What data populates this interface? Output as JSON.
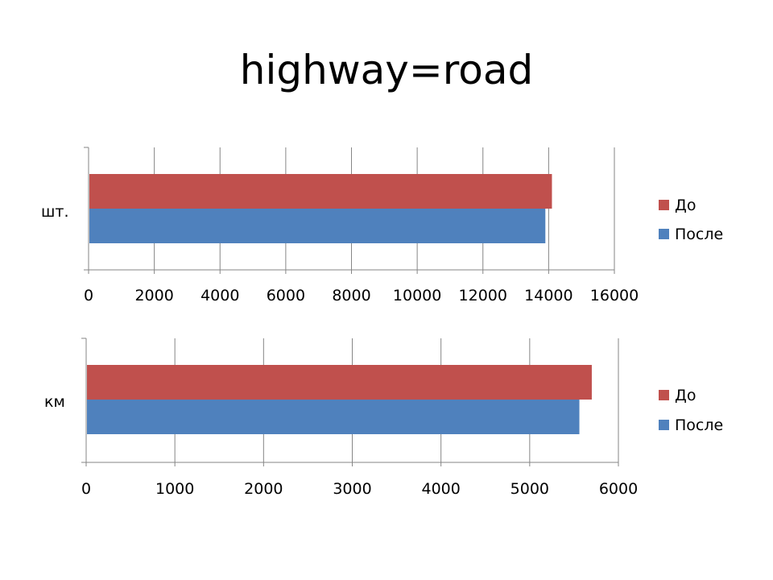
{
  "slide": {
    "title": "highway=road"
  },
  "chart_data": [
    {
      "type": "bar",
      "orientation": "horizontal",
      "categories": [
        "шт."
      ],
      "series": [
        {
          "name": "До",
          "values": [
            14100
          ],
          "color": "#c0504d"
        },
        {
          "name": "После",
          "values": [
            13900
          ],
          "color": "#4f81bd"
        }
      ],
      "xlim": [
        0,
        16000
      ],
      "xticks": [
        0,
        2000,
        4000,
        6000,
        8000,
        10000,
        12000,
        14000,
        16000
      ],
      "grid": "vertical",
      "legend": "right"
    },
    {
      "type": "bar",
      "orientation": "horizontal",
      "categories": [
        "км"
      ],
      "series": [
        {
          "name": "До",
          "values": [
            5700
          ],
          "color": "#c0504d"
        },
        {
          "name": "После",
          "values": [
            5560
          ],
          "color": "#4f81bd"
        }
      ],
      "xlim": [
        0,
        6000
      ],
      "xticks": [
        0,
        1000,
        2000,
        3000,
        4000,
        5000,
        6000
      ],
      "grid": "vertical",
      "legend": "right"
    }
  ]
}
